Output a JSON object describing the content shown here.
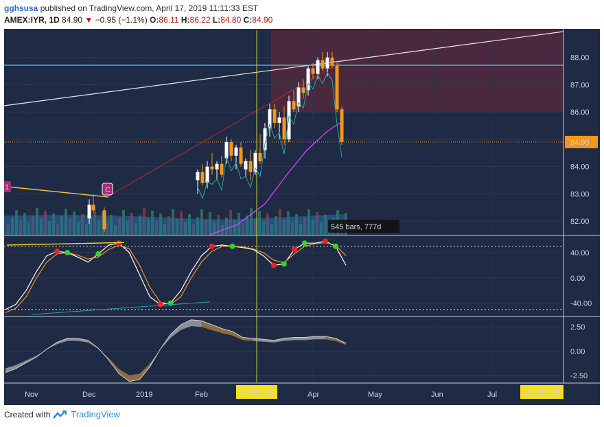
{
  "header": {
    "user": "gghsusa",
    "published_text": "published on TradingView.com, April 17, 2019 11:11:33 EST",
    "symbol": "AMEX:IYR, 1D",
    "last": "84.90",
    "arrow": "▼",
    "change": "−0.95 (−1.1%)",
    "o_label": "O:",
    "o": "86.11",
    "h_label": "H:",
    "h": "86.22",
    "l_label": "L:",
    "l": "84.80",
    "c_label": "C:",
    "c": "84.90"
  },
  "footer": {
    "created_with": "Created with",
    "brand": "TradingView",
    "logo_icon": "tradingview-logo-icon"
  },
  "colors": {
    "background": "#1f2a44",
    "up_candle": "#ffffff",
    "down_candle": "#f5961d",
    "trend_line": "#e8e8e8",
    "horizontal_line": "#4dd0e1",
    "fast_ma": "#26a69a",
    "slow_ma": "#e040fb",
    "stoch_k": "#ffffff",
    "stoch_d": "#f5961d",
    "highlight_zone": "#5a2a3d",
    "price_tag": "#f5961d",
    "date_tag": "#f4e01e"
  },
  "annotations": {
    "marker_1": "1",
    "marker_c": "C",
    "bars_range": "545 bars, 777d",
    "price_tag": "84.90",
    "date_tag_left": "04 Mar '19",
    "date_tag_right": "16 Dec '19"
  },
  "chart_data": [
    {
      "type": "candlestick",
      "panel": "price",
      "ylim": [
        81.5,
        89
      ],
      "y_ticks": [
        "88.00",
        "87.00",
        "86.00",
        "85.00",
        "84.00",
        "83.00",
        "82.00"
      ],
      "x_ticks": [
        "Nov",
        "Dec",
        "2019",
        "Feb",
        "Mar",
        "Apr",
        "May",
        "Jun",
        "Jul"
      ],
      "bars_ohlc": [
        [
          82.1,
          82.8,
          81.9,
          82.6
        ],
        [
          82.6,
          83.0,
          82.3,
          82.4
        ],
        [
          82.4,
          82.5,
          81.6,
          81.7
        ],
        [
          83.5,
          83.9,
          83.0,
          83.8
        ],
        [
          83.8,
          84.1,
          83.3,
          83.4
        ],
        [
          83.4,
          84.2,
          83.2,
          84.0
        ],
        [
          84.0,
          84.5,
          83.7,
          83.9
        ],
        [
          83.9,
          84.2,
          83.5,
          84.1
        ],
        [
          84.1,
          84.4,
          83.6,
          83.7
        ],
        [
          84.3,
          85.1,
          84.1,
          84.9
        ],
        [
          84.9,
          85.0,
          84.2,
          84.4
        ],
        [
          84.4,
          84.8,
          83.9,
          84.7
        ],
        [
          84.7,
          84.9,
          84.0,
          84.1
        ],
        [
          83.9,
          84.3,
          83.6,
          84.2
        ],
        [
          84.2,
          84.6,
          83.5,
          83.8
        ],
        [
          83.8,
          84.6,
          83.7,
          84.5
        ],
        [
          84.5,
          85.2,
          84.1,
          84.2
        ],
        [
          84.6,
          85.6,
          84.3,
          85.4
        ],
        [
          85.4,
          86.3,
          85.1,
          86.1
        ],
        [
          86.1,
          86.3,
          85.4,
          85.6
        ],
        [
          85.6,
          86.0,
          85.0,
          85.8
        ],
        [
          85.8,
          86.2,
          84.8,
          85.0
        ],
        [
          85.0,
          86.6,
          84.9,
          86.4
        ],
        [
          86.4,
          86.8,
          86.0,
          86.1
        ],
        [
          86.2,
          87.1,
          86.0,
          86.9
        ],
        [
          86.9,
          87.2,
          86.5,
          86.7
        ],
        [
          86.8,
          87.7,
          86.6,
          87.6
        ],
        [
          87.6,
          87.8,
          87.2,
          87.4
        ],
        [
          87.4,
          88.0,
          87.2,
          87.9
        ],
        [
          87.9,
          88.2,
          87.5,
          87.6
        ],
        [
          87.6,
          88.2,
          87.3,
          88.0
        ],
        [
          88.0,
          88.2,
          87.6,
          87.7
        ],
        [
          87.7,
          87.8,
          86.0,
          86.1
        ],
        [
          86.1,
          86.2,
          84.8,
          84.9
        ]
      ]
    },
    {
      "type": "line",
      "panel": "stochastic",
      "ylim": [
        -60,
        65
      ],
      "y_ticks": [
        "40.00",
        "0.00",
        "-40.00"
      ],
      "series": [
        {
          "values": [
            -50,
            -42,
            -20,
            10,
            35,
            42,
            40,
            33,
            25,
            38,
            52,
            55,
            40,
            5,
            -30,
            -42,
            -40,
            -20,
            10,
            35,
            50,
            52,
            50,
            48,
            45,
            35,
            20,
            22,
            45,
            55,
            55,
            58,
            50,
            20
          ]
        },
        {
          "values": [
            -55,
            -48,
            -30,
            0,
            25,
            38,
            40,
            36,
            30,
            33,
            45,
            52,
            46,
            20,
            -15,
            -38,
            -42,
            -30,
            0,
            25,
            42,
            50,
            50,
            49,
            46,
            40,
            28,
            24,
            38,
            50,
            54,
            56,
            52,
            35
          ]
        }
      ]
    },
    {
      "type": "area",
      "panel": "oscillator",
      "ylim": [
        -3.2,
        3.4
      ],
      "y_ticks": [
        "2.50",
        "0.00",
        "-2.50"
      ],
      "series": [
        {
          "values": [
            -2.2,
            -1.8,
            -1.2,
            -0.6,
            0.2,
            0.9,
            1.3,
            1.3,
            1.1,
            0.3,
            -0.9,
            -2.3,
            -3.1,
            -2.9,
            -1.6,
            0.2,
            1.7,
            2.7,
            3.2,
            3.1,
            2.7,
            2.3,
            2.0,
            1.4,
            1.3,
            1.2,
            1.1,
            1.3,
            1.4,
            1.4,
            1.5,
            1.5,
            1.3,
            0.8
          ]
        }
      ]
    }
  ]
}
